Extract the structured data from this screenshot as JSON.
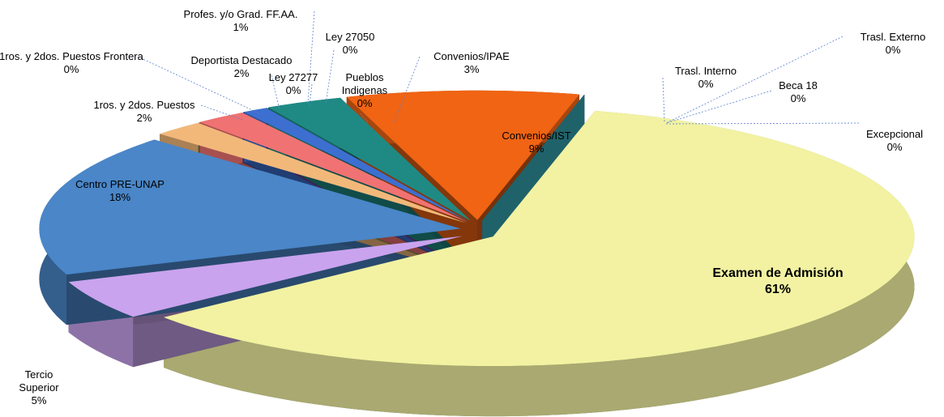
{
  "chart_data": {
    "type": "pie",
    "categories": [
      "Examen de Admisión",
      "Tercio Superior",
      "Centro PRE-UNAP",
      "1ros. y 2dos. Puestos",
      "1ros. y 2dos. Puestos Frontera",
      "Deportista Destacado",
      "Ley 27277",
      "Profes. y/o Grad. FF.AA.",
      "Ley 27050",
      "Pueblos Indigenas",
      "Convenios/IPAE",
      "Convenios/IST",
      "Trasl. Interno",
      "Trasl. Externo",
      "Beca 18",
      "Excepcional"
    ],
    "values": [
      61,
      5,
      18,
      2,
      0,
      2,
      0,
      1,
      0,
      0,
      3,
      9,
      0,
      0,
      0,
      0
    ],
    "value_labels": [
      "61%",
      "5%",
      "18%",
      "2%",
      "0%",
      "2%",
      "0%",
      "1%",
      "0%",
      "0%",
      "3%",
      "9%",
      "0%",
      "0%",
      "0%",
      "0%"
    ],
    "colors": [
      "#f2f2a2",
      "#c9a3ee",
      "#4a86c8",
      "#f2b87a",
      "#5aa02c",
      "#f07272",
      "#1f3ea0",
      "#3c6fd0",
      "#d020d0",
      "#9030a0",
      "#1f8a84",
      "#f06414",
      "#7474c8",
      "#3a5fc0",
      "#2a9ad0",
      "#40c4d4"
    ]
  }
}
